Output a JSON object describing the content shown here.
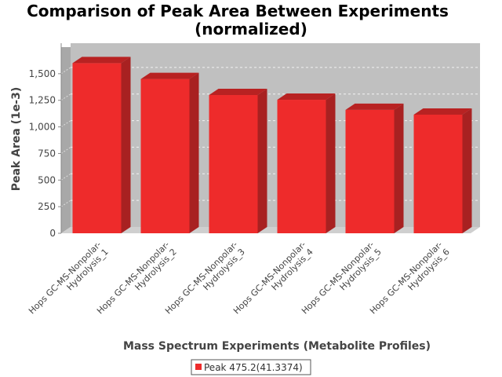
{
  "chart_data": {
    "type": "bar",
    "title_lines": [
      "Comparison of Peak Area Between Experiments",
      "(normalized)"
    ],
    "xlabel": "Mass Spectrum Experiments (Metabolite Profiles)",
    "ylabel": "Peak Area (1e-3)",
    "ylim": [
      0,
      1750
    ],
    "yticks": [
      0,
      250,
      500,
      750,
      1000,
      1250,
      1500
    ],
    "ytick_labels": [
      "0",
      "250",
      "500",
      "750",
      "1,000",
      "1,250",
      "1,500"
    ],
    "grid": true,
    "legend_position": "bottom",
    "categories": [
      [
        "Hops GC-MS-Nonpolar-",
        "Hydrolysis_1"
      ],
      [
        "Hops GC-MS-Nonpolar-",
        "Hydrolysis_2"
      ],
      [
        "Hops GC-MS-Nonpolar-",
        "Hydrolysis_3"
      ],
      [
        "Hops GC-MS-Nonpolar-",
        "Hydrolysis_4"
      ],
      [
        "Hops GC-MS-Nonpolar-",
        "Hydrolysis_5"
      ],
      [
        "Hops GC-MS-Nonpolar-",
        "Hydrolysis_6"
      ]
    ],
    "series": [
      {
        "name": "Peak 475.2(41.3374)",
        "color": "#ee2b2b",
        "values": [
          1600,
          1450,
          1300,
          1255,
          1160,
          1115
        ]
      }
    ]
  }
}
